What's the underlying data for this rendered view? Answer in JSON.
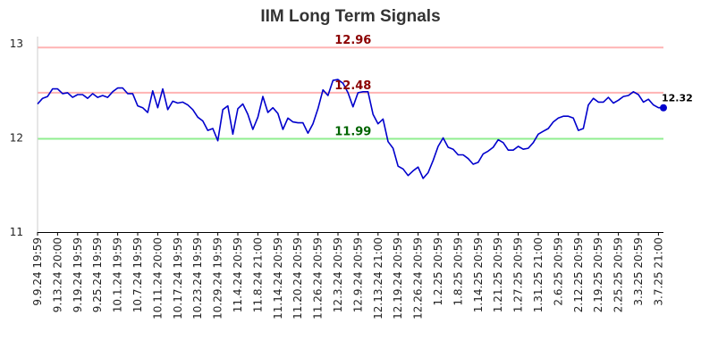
{
  "chart_data": {
    "type": "line",
    "title": "IIM Long Term Signals",
    "xlabel": "",
    "ylabel": "",
    "ylim": [
      11,
      13
    ],
    "yticks": [
      "11",
      "12",
      "13"
    ],
    "grid": false,
    "line_color": "#0000cc",
    "x_tick_labels": [
      "9.9.24 19:59",
      "9.13.24 20:00",
      "9.19.24 19:59",
      "9.25.24 19:59",
      "10.1.24 19:59",
      "10.7.24 19:59",
      "10.11.24 20:00",
      "10.17.24 19:59",
      "10.23.24 19:59",
      "10.29.24 19:59",
      "11.4.24 20:59",
      "11.8.24 21:00",
      "11.14.24 20:59",
      "11.20.24 20:59",
      "11.26.24 20:59",
      "12.3.24 20:59",
      "12.9.24 20:59",
      "12.13.24 21:00",
      "12.19.24 20:59",
      "12.26.24 20:59",
      "1.2.25 20:59",
      "1.8.25 20:59",
      "1.14.25 20:59",
      "1.21.25 20:59",
      "1.27.25 20:59",
      "1.31.25 21:00",
      "2.6.25 20:59",
      "2.12.25 20:59",
      "2.19.25 20:59",
      "2.25.25 20:59",
      "3.3.25 20:59",
      "3.7.25 21:00"
    ],
    "x_tick_positions": [
      0,
      4,
      8,
      12,
      16,
      20,
      24,
      28,
      32,
      36,
      40,
      44,
      48,
      52,
      56,
      60,
      64,
      68,
      72,
      76,
      80,
      84,
      88,
      92,
      96,
      100,
      104,
      108,
      112,
      116,
      120,
      124
    ],
    "series": [
      {
        "values": [
          12.36,
          12.42,
          12.44,
          12.52,
          12.52,
          12.47,
          12.48,
          12.43,
          12.46,
          12.46,
          12.42,
          12.47,
          12.43,
          12.45,
          12.43,
          12.49,
          12.53,
          12.53,
          12.47,
          12.47,
          12.34,
          12.32,
          12.27,
          12.5,
          12.32,
          12.52,
          12.3,
          12.39,
          12.37,
          12.38,
          12.35,
          12.3,
          12.22,
          12.18,
          12.08,
          12.1,
          11.97,
          12.3,
          12.34,
          12.04,
          12.31,
          12.36,
          12.25,
          12.09,
          12.22,
          12.44,
          12.27,
          12.32,
          12.26,
          12.09,
          12.21,
          12.17,
          12.16,
          12.16,
          12.05,
          12.15,
          12.31,
          12.51,
          12.45,
          12.61,
          12.62,
          12.58,
          12.48,
          12.33,
          12.48,
          12.49,
          12.49,
          12.25,
          12.15,
          12.2,
          11.96,
          11.89,
          11.7,
          11.67,
          11.6,
          11.65,
          11.69,
          11.57,
          11.63,
          11.76,
          11.91,
          12.0,
          11.9,
          11.88,
          11.82,
          11.82,
          11.78,
          11.72,
          11.74,
          11.83,
          11.86,
          11.9,
          11.98,
          11.95,
          11.87,
          11.87,
          11.91,
          11.88,
          11.89,
          11.95,
          12.04,
          12.07,
          12.1,
          12.17,
          12.21,
          12.23,
          12.23,
          12.21,
          12.08,
          12.1,
          12.35,
          12.42,
          12.38,
          12.38,
          12.43,
          12.37,
          12.4,
          12.44,
          12.45,
          12.49,
          12.46,
          12.38,
          12.41,
          12.35,
          12.32,
          12.32
        ]
      }
    ],
    "reference_lines": [
      {
        "value": 12.96,
        "label": "12.96",
        "color": "#ffb3b3",
        "label_color": "#8b0000"
      },
      {
        "value": 12.48,
        "label": "12.48",
        "color": "#ffb3b3",
        "label_color": "#8b0000"
      },
      {
        "value": 11.99,
        "label": "11.99",
        "color": "#90ee90",
        "label_color": "#006400"
      }
    ],
    "last_point": {
      "value": 12.32,
      "label": "12.32"
    }
  }
}
